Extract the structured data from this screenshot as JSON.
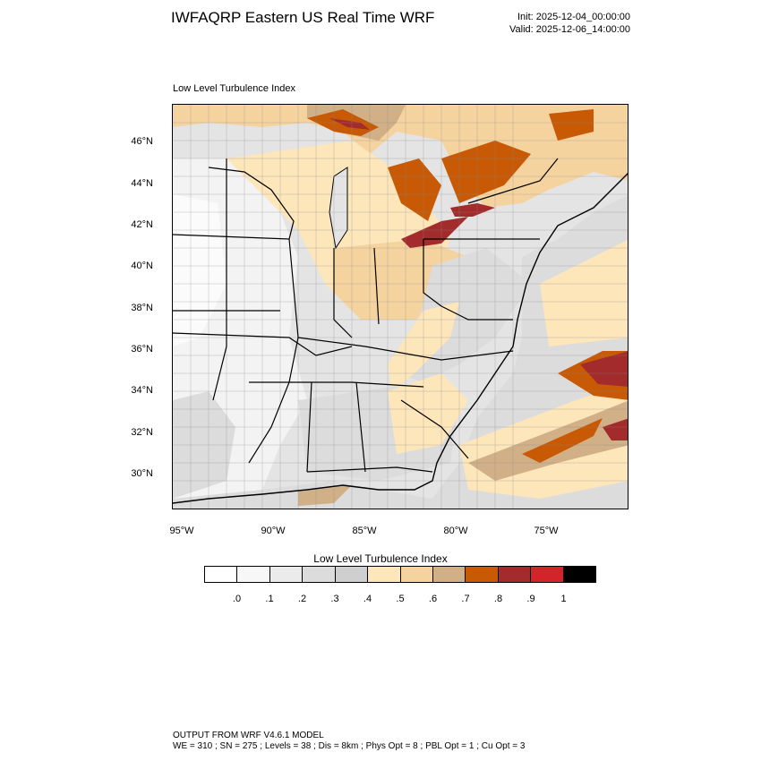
{
  "header": {
    "title": "IWFAQRP Eastern US Real Time WRF",
    "init": "Init: 2025-12-04_00:00:00",
    "valid": "Valid: 2025-12-06_14:00:00"
  },
  "map": {
    "subtitle": "Low Level Turbulence Index",
    "lat_labels": [
      "46°N",
      "44°N",
      "42°N",
      "40°N",
      "38°N",
      "36°N",
      "34°N",
      "32°N",
      "30°N"
    ],
    "lon_labels": [
      "95°W",
      "90°W",
      "85°W",
      "80°W",
      "75°W"
    ],
    "ocean_color": "#dcdcdc",
    "border_color": "#000000"
  },
  "colorbar": {
    "title": "Low Level Turbulence Index",
    "colors": [
      "#ffffff",
      "#f7f7f7",
      "#ebebeb",
      "#dcdcdc",
      "#cfcfcf",
      "#fde6ba",
      "#f5d39f",
      "#d1b088",
      "#c85a05",
      "#a42b2b",
      "#d3242a",
      "#000000"
    ],
    "ticks": [
      ".0",
      ".1",
      ".2",
      ".3",
      ".4",
      ".5",
      ".6",
      ".7",
      ".8",
      ".9",
      "1"
    ]
  },
  "footer": {
    "line1": "OUTPUT FROM WRF V4.6.1 MODEL",
    "line2": "WE = 310 ; SN = 275 ; Levels = 38 ; Dis = 8km ; Phys Opt = 8 ; PBL Opt = 1 ; Cu Opt = 3"
  }
}
